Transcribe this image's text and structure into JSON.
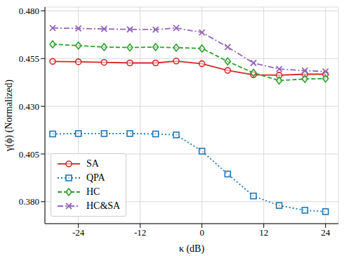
{
  "chart_data": {
    "type": "line",
    "x_label": "κ (dB)",
    "y_label": "γ(ϕ) (Normalized)",
    "x": [
      -29,
      -24,
      -19,
      -14,
      -9,
      -5,
      0,
      5,
      10,
      15,
      20,
      24
    ],
    "xlim": [
      -30.5,
      26.5
    ],
    "xticks": [
      -24,
      -12,
      0,
      12,
      24
    ],
    "ylim": [
      0.3685,
      0.482
    ],
    "yticks": [
      {
        "value": 0.38,
        "label": "0.380"
      },
      0.405,
      {
        "value": 0.43,
        "label": "0.430"
      },
      0.455,
      {
        "value": 0.48,
        "label": "0.480"
      }
    ],
    "grid": true,
    "legend": "lower left",
    "series": [
      {
        "name": "SA",
        "color": "#d62728",
        "marker": "circle",
        "line_style": "solid",
        "values": [
          0.4535,
          0.4533,
          0.453,
          0.4527,
          0.4527,
          0.4537,
          0.4523,
          0.4488,
          0.4465,
          0.4463,
          0.4468,
          0.4468
        ]
      },
      {
        "name": "QPA",
        "color": "#1f77b4",
        "marker": "square",
        "line_style": "dotted",
        "values": [
          0.4155,
          0.4157,
          0.4157,
          0.4157,
          0.4155,
          0.415,
          0.4065,
          0.3945,
          0.383,
          0.378,
          0.3755,
          0.3748
        ]
      },
      {
        "name": "HC",
        "color": "#2ca02c",
        "marker": "diamond",
        "line_style": "dashed",
        "values": [
          0.4625,
          0.4618,
          0.461,
          0.4608,
          0.461,
          0.4607,
          0.4603,
          0.4535,
          0.4475,
          0.4435,
          0.4443,
          0.4445
        ]
      },
      {
        "name": "HC&SA",
        "color": "#9467bd",
        "marker": "x",
        "line_style": "dashdot",
        "values": [
          0.471,
          0.4708,
          0.4705,
          0.4703,
          0.4702,
          0.471,
          0.4687,
          0.461,
          0.4527,
          0.4495,
          0.4487,
          0.4482
        ]
      }
    ]
  }
}
